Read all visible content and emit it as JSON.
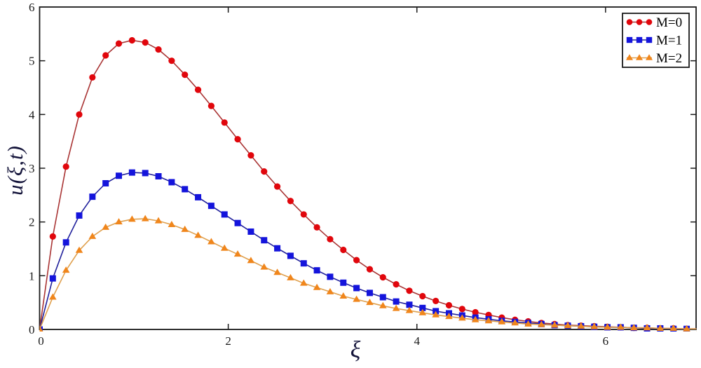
{
  "figure": {
    "background": "#ffffff",
    "axis_color": "#1a1a1a",
    "tick_label_color": "#1a1a1a",
    "axis_label_color": "#14143a",
    "legend_border_color": "#1a1a1a",
    "legend_background": "#ffffff"
  },
  "chart_data": {
    "type": "line",
    "title": "",
    "xlabel": "ξ",
    "ylabel": "u(ξ,t)",
    "xlim": [
      0,
      6.96
    ],
    "ylim": [
      0,
      6
    ],
    "xticks": [
      0,
      2,
      4,
      6
    ],
    "yticks": [
      0,
      1,
      2,
      3,
      4,
      5,
      6
    ],
    "grid": false,
    "legend_position": "top-right",
    "x": [
      0,
      0.14,
      0.28,
      0.42,
      0.56,
      0.7,
      0.84,
      0.98,
      1.12,
      1.26,
      1.4,
      1.54,
      1.68,
      1.82,
      1.96,
      2.1,
      2.24,
      2.38,
      2.52,
      2.66,
      2.8,
      2.94,
      3.08,
      3.22,
      3.36,
      3.5,
      3.64,
      3.78,
      3.92,
      4.06,
      4.2,
      4.34,
      4.48,
      4.62,
      4.76,
      4.9,
      5.04,
      5.18,
      5.32,
      5.46,
      5.6,
      5.74,
      5.88,
      6.02,
      6.16,
      6.3,
      6.44,
      6.58,
      6.72,
      6.86,
      7.0
    ],
    "series": [
      {
        "name": "M=0",
        "marker": "circle",
        "marker_color": "#e1060c",
        "line_color": "#a93434",
        "peak": {
          "x": 0.98,
          "y": 5.38
        },
        "values": [
          0,
          1.73,
          3.03,
          4.0,
          4.69,
          5.1,
          5.32,
          5.38,
          5.34,
          5.21,
          5.0,
          4.74,
          4.46,
          4.16,
          3.85,
          3.54,
          3.24,
          2.94,
          2.66,
          2.39,
          2.14,
          1.9,
          1.68,
          1.48,
          1.29,
          1.12,
          0.97,
          0.84,
          0.72,
          0.62,
          0.53,
          0.45,
          0.38,
          0.32,
          0.27,
          0.22,
          0.18,
          0.15,
          0.12,
          0.1,
          0.08,
          0.07,
          0.06,
          0.05,
          0.04,
          0.03,
          0.03,
          0.02,
          0.02,
          0.01,
          0.01
        ]
      },
      {
        "name": "M=1",
        "marker": "square",
        "marker_color": "#1414dc",
        "line_color": "#20209b",
        "peak": {
          "x": 0.98,
          "y": 2.92
        },
        "values": [
          0,
          0.95,
          1.62,
          2.12,
          2.47,
          2.72,
          2.86,
          2.92,
          2.91,
          2.85,
          2.74,
          2.61,
          2.46,
          2.3,
          2.14,
          1.98,
          1.82,
          1.66,
          1.51,
          1.37,
          1.23,
          1.1,
          0.98,
          0.87,
          0.77,
          0.68,
          0.6,
          0.52,
          0.46,
          0.4,
          0.34,
          0.3,
          0.26,
          0.22,
          0.19,
          0.16,
          0.14,
          0.12,
          0.1,
          0.08,
          0.07,
          0.06,
          0.05,
          0.04,
          0.04,
          0.03,
          0.02,
          0.02,
          0.01,
          0.01,
          0.01
        ]
      },
      {
        "name": "M=2",
        "marker": "triangle",
        "marker_color": "#f0861c",
        "line_color": "#dfa04e",
        "peak": {
          "x": 1.12,
          "y": 2.06
        },
        "values": [
          0,
          0.6,
          1.1,
          1.47,
          1.73,
          1.9,
          2.0,
          2.05,
          2.06,
          2.02,
          1.95,
          1.86,
          1.75,
          1.63,
          1.51,
          1.4,
          1.28,
          1.16,
          1.06,
          0.96,
          0.86,
          0.78,
          0.7,
          0.62,
          0.56,
          0.5,
          0.44,
          0.39,
          0.35,
          0.31,
          0.27,
          0.24,
          0.21,
          0.18,
          0.16,
          0.14,
          0.12,
          0.1,
          0.09,
          0.08,
          0.07,
          0.06,
          0.05,
          0.04,
          0.04,
          0.03,
          0.03,
          0.02,
          0.02,
          0.01,
          0.01
        ]
      }
    ]
  }
}
